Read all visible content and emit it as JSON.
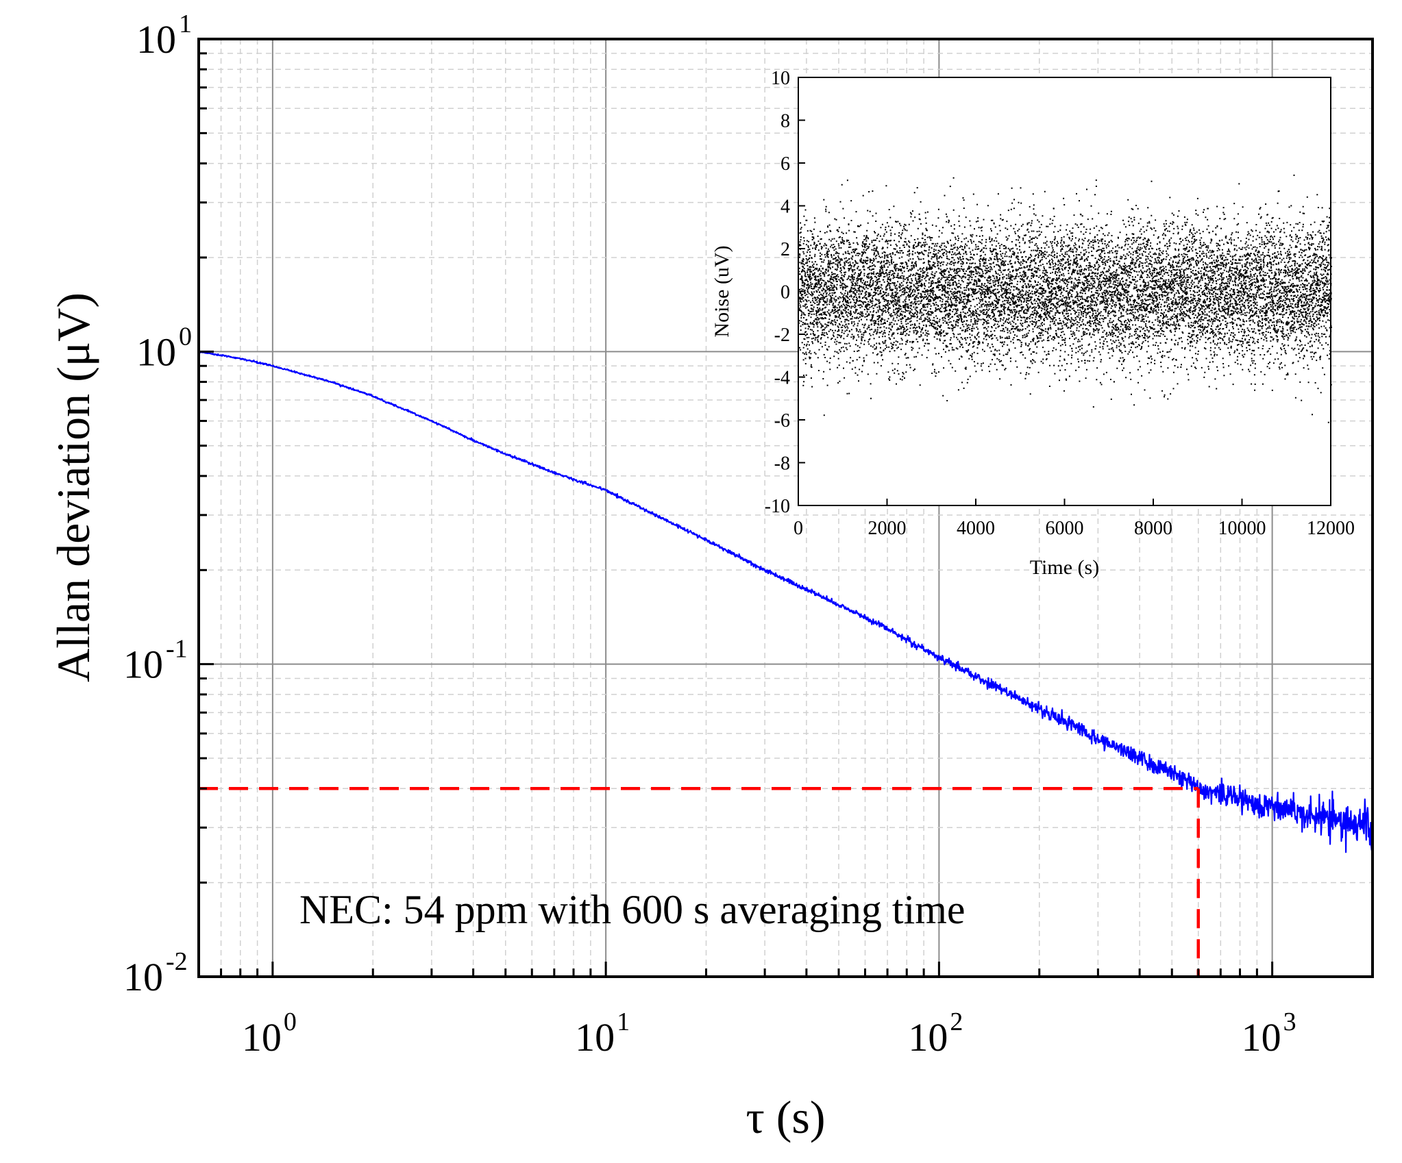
{
  "chart_data": [
    {
      "id": "main",
      "type": "line",
      "xscale": "log",
      "yscale": "log",
      "xlabel": "τ (s)",
      "ylabel": "Allan deviation (μV)",
      "xlim": [
        0.6,
        2000
      ],
      "ylim": [
        0.01,
        10
      ],
      "x_ticks": [
        {
          "value": 1,
          "base": "10",
          "exp": "0"
        },
        {
          "value": 10,
          "base": "10",
          "exp": "1"
        },
        {
          "value": 100,
          "base": "10",
          "exp": "2"
        },
        {
          "value": 1000,
          "base": "10",
          "exp": "3"
        }
      ],
      "y_ticks": [
        {
          "value": 0.01,
          "base": "10",
          "exp": "-2"
        },
        {
          "value": 0.1,
          "base": "10",
          "exp": "-1"
        },
        {
          "value": 1,
          "base": "10",
          "exp": "0"
        },
        {
          "value": 10,
          "base": "10",
          "exp": "1"
        }
      ],
      "grid": true,
      "series": [
        {
          "name": "Allan deviation",
          "color": "#0000ff",
          "x": [
            0.6,
            0.8,
            1,
            1.5,
            2,
            3,
            4,
            5,
            7,
            10,
            15,
            20,
            30,
            50,
            70,
            100,
            150,
            200,
            300,
            400,
            500,
            600,
            700,
            800,
            1000,
            1200,
            1500,
            2000
          ],
          "y": [
            1.0,
            0.95,
            0.9,
            0.8,
            0.72,
            0.6,
            0.52,
            0.47,
            0.41,
            0.36,
            0.29,
            0.25,
            0.2,
            0.155,
            0.13,
            0.105,
            0.084,
            0.072,
            0.058,
            0.05,
            0.045,
            0.04,
            0.039,
            0.037,
            0.035,
            0.034,
            0.032,
            0.03
          ]
        }
      ],
      "markers": {
        "color": "#ff0000",
        "nec_x": 600,
        "nec_y": 0.04
      },
      "annotation": "NEC: 54 ppm with 600 s averaging time"
    },
    {
      "id": "inset",
      "type": "scatter",
      "xlabel": "Time (s)",
      "ylabel": "Noise (uV)",
      "xlim": [
        0,
        12000
      ],
      "ylim": [
        -10,
        10
      ],
      "x_ticks": [
        "0",
        "2000",
        "4000",
        "6000",
        "8000",
        "10000",
        "12000"
      ],
      "y_ticks": [
        "-10",
        "-8",
        "-6",
        "-4",
        "-2",
        "0",
        "2",
        "4",
        "6",
        "8",
        "10"
      ],
      "series": [
        {
          "name": "Noise",
          "color": "#000000",
          "points": 12000,
          "mean": 0,
          "std": 1.6
        }
      ]
    }
  ]
}
